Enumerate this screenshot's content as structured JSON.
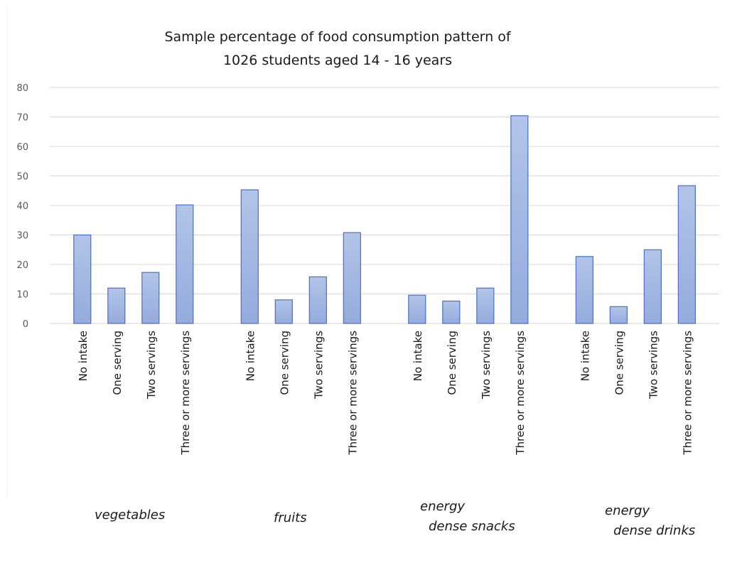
{
  "chart_data": {
    "type": "bar",
    "title_lines": [
      "Sample percentage of food consumption  pattern of",
      "1026 students aged 14 - 16 years"
    ],
    "xlabel": "",
    "ylabel": "",
    "ylim": [
      0,
      80
    ],
    "yticks": [
      0,
      10,
      20,
      30,
      40,
      50,
      60,
      70,
      80
    ],
    "grid": true,
    "legend": "none",
    "bar_color": "#94abdd",
    "bar_color_light": "#b2c4e8",
    "bar_edge_color": "#4a6fc8",
    "groups": [
      {
        "name": "vegetables",
        "label_lines": [
          "vegetables"
        ],
        "categories": [
          "No intake",
          "One serving",
          "Two servings",
          "Three or more servings"
        ],
        "values": [
          30,
          12,
          17.3,
          40.2
        ]
      },
      {
        "name": "fruits",
        "label_lines": [
          "fruits"
        ],
        "categories": [
          "No intake",
          "One serving",
          "Two servings",
          "Three or more servings"
        ],
        "values": [
          45.3,
          8,
          15.8,
          30.8
        ]
      },
      {
        "name": "energy dense snacks",
        "label_lines": [
          "energy",
          "dense snacks"
        ],
        "categories": [
          "No intake",
          "One serving",
          "Two servings",
          "Three or more servings"
        ],
        "values": [
          9.6,
          7.6,
          12,
          70.4
        ]
      },
      {
        "name": "energy dense drinks",
        "label_lines": [
          "energy",
          "dense drinks"
        ],
        "categories": [
          "No intake",
          "One serving",
          "Two servings",
          "Three or more servings"
        ],
        "values": [
          22.7,
          5.7,
          25,
          46.7
        ]
      }
    ]
  }
}
